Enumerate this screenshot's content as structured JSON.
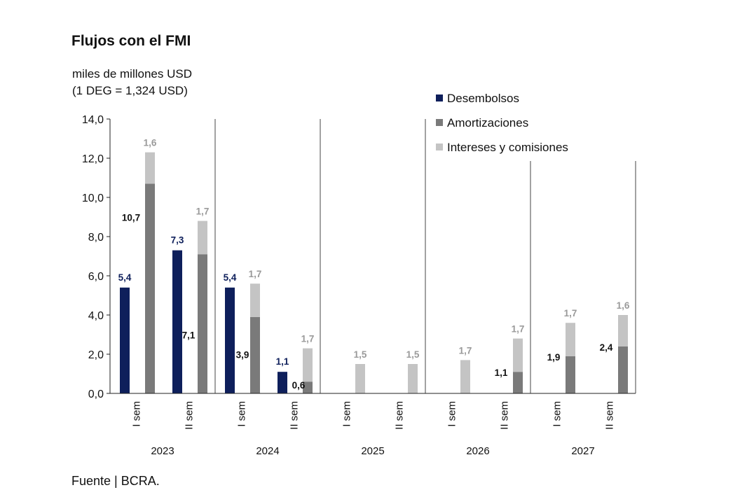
{
  "title": "Flujos con el FMI",
  "unit_line1": "miles de millones USD",
  "unit_line2": "(1 DEG = 1,324 USD)",
  "source": "Fuente | BCRA.",
  "colors": {
    "desembolsos": "#0e1f5b",
    "amortizaciones": "#7a7a7a",
    "intereses": "#c4c4c4",
    "label_dark": "#111111",
    "label_gray": "#9a9a9a"
  },
  "chart_data": {
    "type": "bar",
    "title": "Flujos con el FMI",
    "ylabel": "miles de millones USD",
    "ylim": [
      0,
      14
    ],
    "yticks": [
      "0,0",
      "2,0",
      "4,0",
      "6,0",
      "8,0",
      "10,0",
      "12,0",
      "14,0"
    ],
    "legend_position": "top-right",
    "legend": [
      "Desembolsos",
      "Amortizaciones",
      "Intereses y comisiones"
    ],
    "years": [
      "2023",
      "2024",
      "2025",
      "2026",
      "2027"
    ],
    "categories": [
      {
        "label": "I sem",
        "year": "2023",
        "desembolsos": 5.4,
        "desembolsos_label": "5,4",
        "amortizaciones": 10.7,
        "amortizaciones_label": "10,7",
        "intereses": 1.6,
        "intereses_label": "1,6"
      },
      {
        "label": "II sem",
        "year": "2023",
        "desembolsos": 7.3,
        "desembolsos_label": "7,3",
        "amortizaciones": 7.1,
        "amortizaciones_label": "7,1",
        "intereses": 1.7,
        "intereses_label": "1,7"
      },
      {
        "label": "I sem",
        "year": "2024",
        "desembolsos": 5.4,
        "desembolsos_label": "5,4",
        "amortizaciones": 3.9,
        "amortizaciones_label": "3,9",
        "intereses": 1.7,
        "intereses_label": "1,7"
      },
      {
        "label": "II sem",
        "year": "2024",
        "desembolsos": 1.1,
        "desembolsos_label": "1,1",
        "amortizaciones": 0.6,
        "amortizaciones_label": "0,6",
        "intereses": 1.7,
        "intereses_label": "1,7"
      },
      {
        "label": "I sem",
        "year": "2025",
        "desembolsos": 0,
        "desembolsos_label": "",
        "amortizaciones": 0,
        "amortizaciones_label": "",
        "intereses": 1.5,
        "intereses_label": "1,5"
      },
      {
        "label": "II sem",
        "year": "2025",
        "desembolsos": 0,
        "desembolsos_label": "",
        "amortizaciones": 0,
        "amortizaciones_label": "",
        "intereses": 1.5,
        "intereses_label": "1,5"
      },
      {
        "label": "I sem",
        "year": "2026",
        "desembolsos": 0,
        "desembolsos_label": "",
        "amortizaciones": 0,
        "amortizaciones_label": "",
        "intereses": 1.7,
        "intereses_label": "1,7"
      },
      {
        "label": "II sem",
        "year": "2026",
        "desembolsos": 0,
        "desembolsos_label": "",
        "amortizaciones": 1.1,
        "amortizaciones_label": "1,1",
        "intereses": 1.7,
        "intereses_label": "1,7"
      },
      {
        "label": "I sem",
        "year": "2027",
        "desembolsos": 0,
        "desembolsos_label": "",
        "amortizaciones": 1.9,
        "amortizaciones_label": "1,9",
        "intereses": 1.7,
        "intereses_label": "1,7"
      },
      {
        "label": "II sem",
        "year": "2027",
        "desembolsos": 0,
        "desembolsos_label": "",
        "amortizaciones": 2.4,
        "amortizaciones_label": "2,4",
        "intereses": 1.6,
        "intereses_label": "1,6"
      }
    ]
  }
}
